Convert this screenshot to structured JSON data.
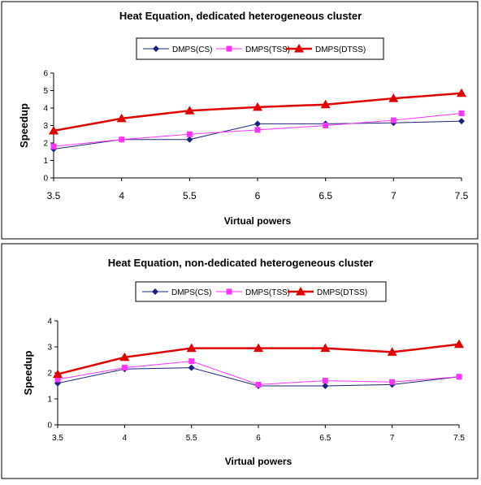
{
  "chart_data": [
    {
      "type": "line",
      "title": "Heat Equation, dedicated heterogeneous cluster",
      "xlabel": "Virtual powers",
      "ylabel": "Speedup",
      "x": [
        "3.5",
        "4",
        "5.5",
        "6",
        "6.5",
        "7",
        "7.5"
      ],
      "ylim": [
        0,
        6
      ],
      "yticks": [
        "0",
        "1",
        "2",
        "3",
        "4",
        "5",
        "6"
      ],
      "grid": false,
      "legend": "top",
      "series": [
        {
          "name": "DMPS(CS)",
          "color": "#1a237e",
          "marker": "diamond",
          "values": [
            1.65,
            2.2,
            2.2,
            3.1,
            3.1,
            3.15,
            3.25
          ]
        },
        {
          "name": "DMPS(TSS)",
          "color": "#ff33ff",
          "marker": "square",
          "values": [
            1.8,
            2.2,
            2.5,
            2.75,
            3.0,
            3.3,
            3.7
          ]
        },
        {
          "name": "DMPS(DTSS)",
          "color": "#e00000",
          "marker": "triangle",
          "values": [
            2.7,
            3.4,
            3.85,
            4.05,
            4.2,
            4.55,
            4.85
          ]
        }
      ]
    },
    {
      "type": "line",
      "title": "Heat Equation, non-dedicated heterogeneous cluster",
      "xlabel": "Virtual powers",
      "ylabel": "Speedup",
      "x": [
        "3.5",
        "4",
        "5.5",
        "6",
        "6.5",
        "7",
        "7.5"
      ],
      "ylim": [
        0,
        4
      ],
      "yticks": [
        "0",
        "1",
        "2",
        "3",
        "4"
      ],
      "grid": false,
      "legend": "top",
      "series": [
        {
          "name": "DMPS(CS)",
          "color": "#1a237e",
          "marker": "diamond",
          "values": [
            1.6,
            2.15,
            2.2,
            1.5,
            1.5,
            1.55,
            1.85
          ]
        },
        {
          "name": "DMPS(TSS)",
          "color": "#ff33ff",
          "marker": "square",
          "values": [
            1.75,
            2.2,
            2.45,
            1.55,
            1.7,
            1.65,
            1.85
          ]
        },
        {
          "name": "DMPS(DTSS)",
          "color": "#e00000",
          "marker": "triangle",
          "values": [
            1.95,
            2.6,
            2.95,
            2.95,
            2.95,
            2.8,
            3.1
          ]
        }
      ]
    }
  ]
}
